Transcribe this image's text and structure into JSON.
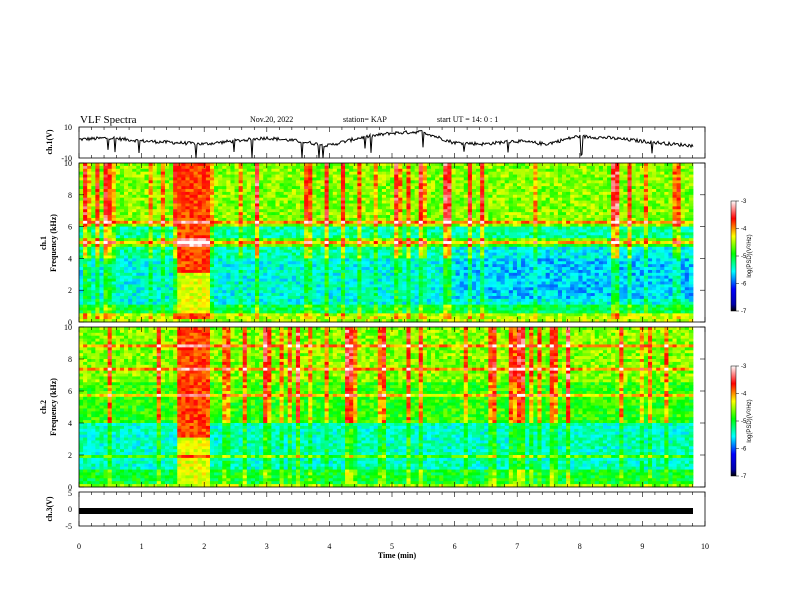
{
  "header": {
    "title": "VLF Spectra",
    "date": "Nov.20, 2022",
    "station": "station= KAP",
    "start_ut": "start  UT =   14: 0  : 1"
  },
  "chart_data": [
    {
      "type": "line",
      "panel": "ch1-waveform",
      "ylabel": "ch.1(V)",
      "ylim": [
        -10,
        10
      ],
      "yticks": [
        "10",
        "-10"
      ],
      "xlim": [
        0,
        10
      ],
      "x": [
        0,
        0.5,
        1.0,
        1.5,
        2.0,
        2.5,
        3.0,
        3.5,
        4.0,
        4.5,
        5.0,
        5.5,
        6.0,
        6.5,
        7.0,
        7.5,
        8.0,
        8.5,
        9.0,
        9.5,
        9.85
      ],
      "y": [
        2,
        3,
        1,
        0,
        -1,
        1,
        3,
        1,
        -2,
        3,
        6,
        7,
        0,
        -1,
        1,
        -1,
        4,
        3,
        1,
        -1,
        -2
      ],
      "color": "#000000"
    },
    {
      "type": "heatmap",
      "panel": "ch1-spectrogram",
      "ylabel": "ch.1\nFrequency (kHz)",
      "ylabel_lines": [
        "ch.1",
        "Frequency (kHz)"
      ],
      "yticks": [
        "0",
        "2",
        "4",
        "6",
        "8",
        "10"
      ],
      "ylim": [
        0,
        10
      ],
      "xlim": [
        0,
        10
      ],
      "colorbar": {
        "label": "log(PSD)(V²/Hz)",
        "range": [
          -7,
          -3
        ],
        "ticks": [
          "-3",
          "-4",
          "-5",
          "-6",
          "-7"
        ]
      },
      "burst_minutes": [
        1.55,
        2.1
      ],
      "strong_lines_khz": [
        0.3,
        0.5,
        4.9,
        5.1,
        6.2
      ]
    },
    {
      "type": "heatmap",
      "panel": "ch2-spectrogram",
      "ylabel": "ch.2\nFrequency (kHz)",
      "ylabel_lines": [
        "ch.2",
        "Frequency (kHz)"
      ],
      "yticks": [
        "0",
        "2",
        "4",
        "6",
        "8",
        "10"
      ],
      "ylim": [
        0,
        10
      ],
      "xlim": [
        0,
        10
      ],
      "colorbar": {
        "label": "log(PSD)(V²/Hz)",
        "range": [
          -7,
          -3
        ],
        "ticks": [
          "-3",
          "-4",
          "-5",
          "-6",
          "-7"
        ]
      },
      "burst_minutes": [
        1.55,
        2.1
      ],
      "strong_lines_khz": [
        1.9,
        5.7,
        7.3,
        8.8
      ]
    },
    {
      "type": "line",
      "panel": "ch3-waveform",
      "ylabel": "ch.3(V)",
      "ylim": [
        -5,
        5
      ],
      "yticks": [
        "5",
        "0",
        "-5"
      ],
      "xlim": [
        0,
        10
      ],
      "x": [
        0,
        9.85
      ],
      "y": [
        -0.6,
        -0.6
      ],
      "color": "#000000"
    }
  ],
  "xaxis": {
    "label": "Time  (min)",
    "ticks": [
      "0",
      "1",
      "2",
      "3",
      "4",
      "5",
      "6",
      "7",
      "8",
      "9",
      "10"
    ]
  }
}
